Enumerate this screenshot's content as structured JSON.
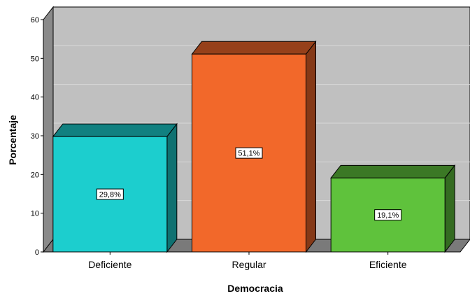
{
  "chart_data": {
    "type": "bar",
    "style": "3d",
    "categories": [
      "Deficiente",
      "Regular",
      "Eficiente"
    ],
    "values": [
      29.8,
      51.1,
      19.1
    ],
    "data_labels": [
      "29,8%",
      "51,1%",
      "19,1%"
    ],
    "colors": [
      "#1ccece",
      "#f2682a",
      "#5fc23c"
    ],
    "xlabel": "Democracia",
    "ylabel": "Porcentaje",
    "ylim": [
      0,
      60
    ],
    "yticks": [
      0,
      10,
      20,
      30,
      40,
      50,
      60
    ],
    "grid": true,
    "legend": "none",
    "background_color": "#c0c0c0"
  }
}
